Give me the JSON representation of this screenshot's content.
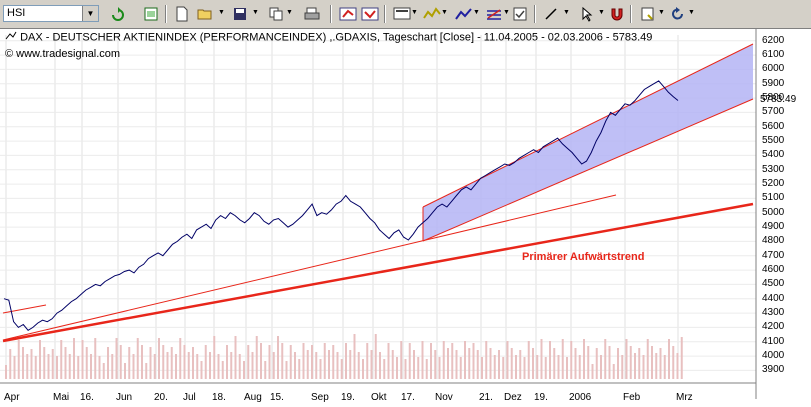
{
  "toolbar": {
    "symbol_value": "HSI",
    "buttons": [
      {
        "name": "refresh-icon"
      },
      {
        "name": "calendar-icon"
      },
      {
        "name": "new-document-icon"
      },
      {
        "name": "open-folder-icon"
      },
      {
        "name": "save-icon"
      },
      {
        "name": "copy-icon"
      },
      {
        "name": "print-icon"
      },
      {
        "name": "arrow-left-icon"
      },
      {
        "name": "arrow-right-icon"
      },
      {
        "name": "chart-type-icon"
      },
      {
        "name": "indicator-icon"
      },
      {
        "name": "trend-tool-icon"
      },
      {
        "name": "fibonacci-icon"
      },
      {
        "name": "properties-icon"
      },
      {
        "name": "draw-line-icon"
      },
      {
        "name": "cursor-icon"
      },
      {
        "name": "magnet-icon"
      },
      {
        "name": "settings-icon"
      },
      {
        "name": "undo-icon"
      }
    ]
  },
  "chart": {
    "caption": "DAX - DEUTSCHER AKTIENINDEX (PERFORMANCEINDEX) ,.GDAXIS, Tageschart [Close] - 11.04.2005 - 02.03.2006 - 5783.49",
    "copyright": "© www.tradesignal.com",
    "last_price": "5783.49",
    "trend_label": "Primärer Aufwärtstrend",
    "colors": {
      "line": "#000066",
      "trend": "#e8261a",
      "channel_fill": "#b4b4f5",
      "volume": "#e8c0c0"
    }
  },
  "chart_data": {
    "type": "line",
    "series_name": "DAX",
    "y_axis_ticks": [
      "6200",
      "6100",
      "6000",
      "5900",
      "5800",
      "5700",
      "5600",
      "5500",
      "5400",
      "5300",
      "5200",
      "5100",
      "5000",
      "4900",
      "4800",
      "4700",
      "4600",
      "4500",
      "4400",
      "4300",
      "4200",
      "4100",
      "4000",
      "3900"
    ],
    "x_axis_labels": [
      "Apr",
      "Mai",
      "16.",
      "Jun",
      "20.",
      "Jul",
      "18.",
      "Aug",
      "15.",
      "Sep",
      "19.",
      "Okt",
      "17.",
      "Nov",
      "21.",
      "Dez",
      "19.",
      "2006",
      "Feb",
      "Mrz"
    ],
    "ylim": [
      3840,
      6240
    ],
    "values": [
      4400,
      4390,
      4240,
      4200,
      4220,
      4180,
      4200,
      4230,
      4250,
      4240,
      4260,
      4300,
      4320,
      4350,
      4380,
      4400,
      4430,
      4460,
      4480,
      4500,
      4490,
      4520,
      4540,
      4560,
      4570,
      4590,
      4600,
      4580,
      4620,
      4640,
      4680,
      4700,
      4720,
      4700,
      4740,
      4780,
      4800,
      4830,
      4850,
      4820,
      4880,
      4900,
      4920,
      4890,
      4950,
      4980,
      4960,
      5000,
      4980,
      4950,
      4930,
      4960,
      5000,
      4980,
      4940,
      4920,
      4950,
      4960,
      4930,
      4900,
      4920,
      4950,
      4980,
      5020,
      5060,
      4980,
      5000,
      4990,
      5020,
      5060,
      5080,
      5120,
      5080,
      5060,
      5040,
      5000,
      4960,
      4930,
      4880,
      4850,
      4820,
      4860,
      4880,
      4830,
      4810,
      4850,
      4900,
      4930,
      4960,
      5000,
      5040,
      5060,
      5040,
      5080,
      5120,
      5160,
      5180,
      5160,
      5200,
      5240,
      5260,
      5280,
      5300,
      5320,
      5340,
      5330,
      5350,
      5380,
      5400,
      5420,
      5440,
      5420,
      5460,
      5480,
      5500,
      5520,
      5480,
      5450,
      5420,
      5380,
      5340,
      5360,
      5420,
      5500,
      5560,
      5640,
      5700,
      5680,
      5720,
      5760,
      5750,
      5780,
      5820,
      5860,
      5880,
      5900,
      5920,
      5880,
      5840,
      5810,
      5783
    ]
  }
}
